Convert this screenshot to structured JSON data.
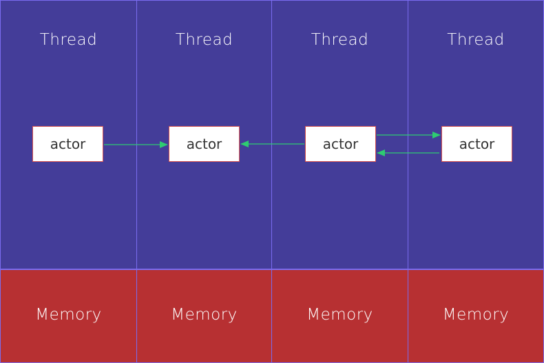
{
  "threads": [
    {
      "label": "Thread"
    },
    {
      "label": "Thread"
    },
    {
      "label": "Thread"
    },
    {
      "label": "Thread"
    }
  ],
  "actors": [
    {
      "label": "actor"
    },
    {
      "label": "actor"
    },
    {
      "label": "actor"
    },
    {
      "label": "actor"
    }
  ],
  "memory": [
    {
      "label": "Memory"
    },
    {
      "label": "Memory"
    },
    {
      "label": "Memory"
    },
    {
      "label": "Memory"
    }
  ],
  "colors": {
    "thread_bg": "#443d99",
    "memory_bg": "#b73032",
    "border": "#7a6cf0",
    "actor_border": "#d9534f",
    "arrow": "#2ecc71"
  }
}
